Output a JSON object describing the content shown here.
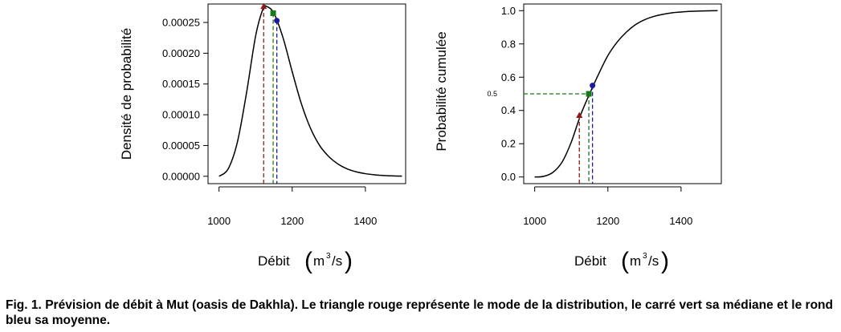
{
  "chart_data": [
    {
      "type": "line",
      "title": "",
      "xlabel": "Débit",
      "xlabel_unit": "m3/s",
      "ylabel": "Densité de probabilité",
      "xlim": [
        970,
        1510
      ],
      "ylim": [
        -1.2e-05,
        0.00028
      ],
      "xticks": [
        "1000",
        "1200",
        "1400"
      ],
      "yticks": [
        "0.00000",
        "0.00005",
        "0.00010",
        "0.00015",
        "0.00020",
        "0.00025"
      ],
      "series": [
        {
          "x": [
            1000,
            1025,
            1050,
            1075,
            1100,
            1120,
            1130,
            1150,
            1175,
            1200,
            1225,
            1250,
            1275,
            1300,
            1325,
            1350,
            1375,
            1400,
            1425,
            1450,
            1475,
            1500
          ],
          "y": [
            0.0,
            1.2e-05,
            5.5e-05,
            0.000135,
            0.000228,
            0.000272,
            0.000276,
            0.000265,
            0.000225,
            0.00017,
            0.000118,
            7.8e-05,
            5e-05,
            3.2e-05,
            2e-05,
            1.2e-05,
            7.2e-06,
            4.2e-06,
            2.4e-06,
            1.2e-06,
            6e-07,
            2e-07
          ]
        }
      ],
      "markers": [
        {
          "kind": "mode",
          "shape": "triangle",
          "color": "#8b1a1a",
          "x": 1122,
          "y": 0.000276
        },
        {
          "kind": "median",
          "shape": "square",
          "color": "#1a7a1a",
          "x": 1148,
          "y": 0.000265
        },
        {
          "kind": "mean",
          "shape": "circle",
          "color": "#1a1aa0",
          "x": 1158,
          "y": 0.000253
        }
      ],
      "grid": false
    },
    {
      "type": "line",
      "title": "",
      "xlabel": "Débit",
      "xlabel_unit": "m3/s",
      "ylabel": "Probabilité cumulée",
      "xlim": [
        970,
        1510
      ],
      "ylim": [
        -0.04,
        1.04
      ],
      "xticks": [
        "1000",
        "1200",
        "1400"
      ],
      "yticks": [
        "0.0",
        "0.2",
        "0.4",
        "0.6",
        "0.8",
        "1.0"
      ],
      "extra_ytick": "0.5",
      "series": [
        {
          "x": [
            1000,
            1025,
            1050,
            1075,
            1100,
            1125,
            1150,
            1175,
            1200,
            1225,
            1250,
            1275,
            1300,
            1325,
            1350,
            1375,
            1400,
            1425,
            1450,
            1475,
            1500
          ],
          "y": [
            0.0,
            0.004,
            0.028,
            0.09,
            0.21,
            0.37,
            0.5,
            0.62,
            0.73,
            0.81,
            0.87,
            0.915,
            0.945,
            0.965,
            0.978,
            0.987,
            0.992,
            0.996,
            0.998,
            0.999,
            1.0
          ]
        }
      ],
      "markers": [
        {
          "kind": "mode",
          "shape": "triangle",
          "color": "#8b1a1a",
          "x": 1122,
          "y": 0.37
        },
        {
          "kind": "median",
          "shape": "square",
          "color": "#1a7a1a",
          "x": 1148,
          "y": 0.5
        },
        {
          "kind": "mean",
          "shape": "circle",
          "color": "#1a1aa0",
          "x": 1158,
          "y": 0.55
        }
      ],
      "grid": false
    }
  ],
  "caption": "Fig. 1. Prévision de débit à Mut (oasis de Dakhla). Le triangle rouge représente le mode de la distribution, le carré vert sa médiane et le rond bleu sa moyenne."
}
